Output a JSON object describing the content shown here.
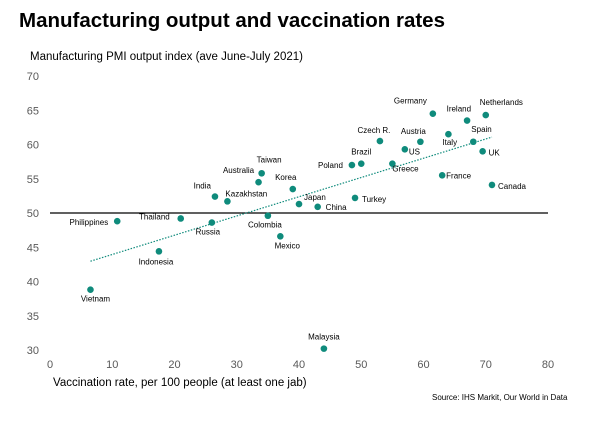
{
  "colors": {
    "point": "#0f8b7c",
    "trend": "#0f8b7c",
    "refline": "#000000"
  },
  "chart_data": {
    "type": "scatter",
    "title": "Manufacturing output and vaccination rates",
    "ylabel": "Manufacturing PMI output index (ave June-July 2021)",
    "xlabel": "Vaccination rate, per 100 people (at least one jab)",
    "source": "Source: IHS Markit, Our World in Data",
    "xlim": [
      0,
      80
    ],
    "ylim": [
      30,
      70
    ],
    "xticks": [
      "0",
      "10",
      "20",
      "30",
      "40",
      "50",
      "60",
      "70",
      "80"
    ],
    "yticks": [
      "30",
      "35",
      "40",
      "45",
      "50",
      "55",
      "60",
      "65",
      "70"
    ],
    "reference_line_y": 50,
    "trendline": true,
    "grid": false,
    "points": [
      {
        "label": "Germany",
        "x": 61.5,
        "y": 64.5
      },
      {
        "label": "Ireland",
        "x": 67.0,
        "y": 63.5
      },
      {
        "label": "Netherlands",
        "x": 70.0,
        "y": 64.3
      },
      {
        "label": "Czech R.",
        "x": 53.0,
        "y": 60.5
      },
      {
        "label": "Austria",
        "x": 59.5,
        "y": 60.4
      },
      {
        "label": "Italy",
        "x": 64.0,
        "y": 61.5
      },
      {
        "label": "Spain",
        "x": 68.0,
        "y": 60.4
      },
      {
        "label": "UK",
        "x": 69.5,
        "y": 59.0
      },
      {
        "label": "Brazil",
        "x": 50.0,
        "y": 57.2
      },
      {
        "label": "Poland",
        "x": 48.5,
        "y": 57.0
      },
      {
        "label": "US",
        "x": 57.0,
        "y": 59.3
      },
      {
        "label": "Greece",
        "x": 55.0,
        "y": 57.2
      },
      {
        "label": "France",
        "x": 63.0,
        "y": 55.5
      },
      {
        "label": "Canada",
        "x": 71.0,
        "y": 54.1
      },
      {
        "label": "Taiwan",
        "x": 34.0,
        "y": 55.8
      },
      {
        "label": "Australia",
        "x": 33.5,
        "y": 54.5
      },
      {
        "label": "Korea",
        "x": 39.0,
        "y": 53.5
      },
      {
        "label": "India",
        "x": 26.5,
        "y": 52.4
      },
      {
        "label": "Kazakhstan",
        "x": 28.5,
        "y": 51.7
      },
      {
        "label": "Japan",
        "x": 40.0,
        "y": 51.3
      },
      {
        "label": "China",
        "x": 43.0,
        "y": 50.9
      },
      {
        "label": "Turkey",
        "x": 49.0,
        "y": 52.2
      },
      {
        "label": "Thailand",
        "x": 21.0,
        "y": 49.2
      },
      {
        "label": "Philippines",
        "x": 10.8,
        "y": 48.8
      },
      {
        "label": "Russia",
        "x": 26.0,
        "y": 48.6
      },
      {
        "label": "Colombia",
        "x": 35.0,
        "y": 49.6
      },
      {
        "label": "Indonesia",
        "x": 17.5,
        "y": 44.4
      },
      {
        "label": "Mexico",
        "x": 37.0,
        "y": 46.6
      },
      {
        "label": "Vietnam",
        "x": 6.5,
        "y": 38.8
      },
      {
        "label": "Malaysia",
        "x": 44.0,
        "y": 30.2
      }
    ]
  }
}
